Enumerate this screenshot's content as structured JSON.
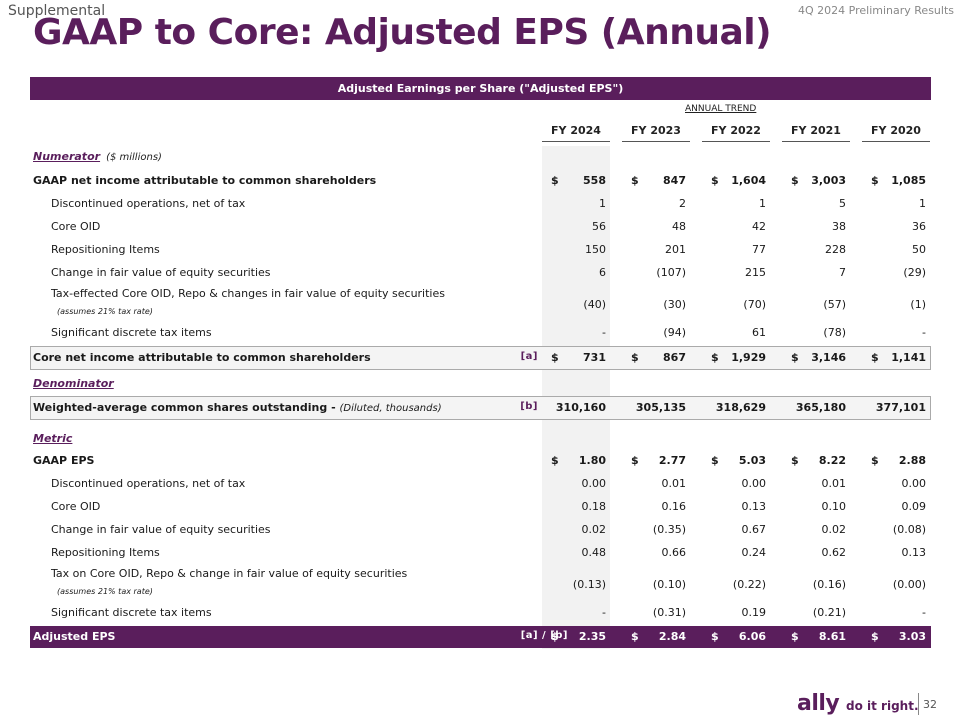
{
  "header": {
    "supplemental": "Supplemental",
    "results": "4Q 2024 Preliminary Results",
    "title": "GAAP to Core: Adjusted EPS (Annual)"
  },
  "band": "Adjusted Earnings per Share (\"Adjusted EPS\")",
  "trend_label": "ANNUAL TREND",
  "columns": [
    "FY 2024",
    "FY 2023",
    "FY 2022",
    "FY 2021",
    "FY 2020"
  ],
  "numerator": {
    "section": "Numerator",
    "unit": "($ millions)",
    "gaap_net_income": {
      "label": "GAAP net income attributable to common shareholders",
      "values": [
        "558",
        "847",
        "1,604",
        "3,003",
        "1,085"
      ]
    },
    "rows": [
      {
        "label": "Discontinued operations, net of tax",
        "values": [
          "1",
          "2",
          "1",
          "5",
          "1"
        ]
      },
      {
        "label": "Core OID",
        "values": [
          "56",
          "48",
          "42",
          "38",
          "36"
        ]
      },
      {
        "label": "Repositioning Items",
        "values": [
          "150",
          "201",
          "77",
          "228",
          "50"
        ]
      },
      {
        "label": "Change in fair value of equity securities",
        "values": [
          "6",
          "(107)",
          "215",
          "7",
          "(29)"
        ]
      },
      {
        "label": "Tax-effected Core OID, Repo & changes in fair value of equity securities",
        "note": "(assumes 21% tax rate)",
        "values": [
          "(40)",
          "(30)",
          "(70)",
          "(57)",
          "(1)"
        ]
      },
      {
        "label": "Significant discrete tax items",
        "values": [
          "-",
          "(94)",
          "61",
          "(78)",
          "-"
        ]
      }
    ],
    "core_net_income": {
      "label": "Core net income attributable to common shareholders",
      "ref": "[a]",
      "values": [
        "731",
        "867",
        "1,929",
        "3,146",
        "1,141"
      ]
    }
  },
  "denominator": {
    "section": "Denominator",
    "shares": {
      "label": "Weighted-average common shares outstanding -",
      "label_sub": "(Diluted, thousands)",
      "ref": "[b]",
      "values": [
        "310,160",
        "305,135",
        "318,629",
        "365,180",
        "377,101"
      ]
    }
  },
  "metric": {
    "section": "Metric",
    "gaap_eps": {
      "label": "GAAP EPS",
      "values": [
        "1.80",
        "2.77",
        "5.03",
        "8.22",
        "2.88"
      ]
    },
    "rows": [
      {
        "label": "Discontinued operations, net of tax",
        "values": [
          "0.00",
          "0.01",
          "0.00",
          "0.01",
          "0.00"
        ]
      },
      {
        "label": "Core OID",
        "values": [
          "0.18",
          "0.16",
          "0.13",
          "0.10",
          "0.09"
        ]
      },
      {
        "label": "Change in fair value of equity securities",
        "values": [
          "0.02",
          "(0.35)",
          "0.67",
          "0.02",
          "(0.08)"
        ]
      },
      {
        "label": "Repositioning Items",
        "values": [
          "0.48",
          "0.66",
          "0.24",
          "0.62",
          "0.13"
        ]
      },
      {
        "label": "Tax on Core OID, Repo & change in fair value of equity securities",
        "note": "(assumes 21% tax rate)",
        "values": [
          "(0.13)",
          "(0.10)",
          "(0.22)",
          "(0.16)",
          "(0.00)"
        ]
      },
      {
        "label": "Significant discrete tax items",
        "values": [
          "-",
          "(0.31)",
          "0.19",
          "(0.21)",
          "-"
        ]
      }
    ],
    "adjusted_eps": {
      "label": "Adjusted EPS",
      "ref": "[a] / [b]",
      "values": [
        "2.35",
        "2.84",
        "6.06",
        "8.61",
        "3.03"
      ]
    }
  },
  "currency_symbol": "$",
  "footer": {
    "logo": "ally",
    "tagline": "do it right.",
    "page_number": "32"
  },
  "colors": {
    "accent": "#5a1e5c"
  }
}
